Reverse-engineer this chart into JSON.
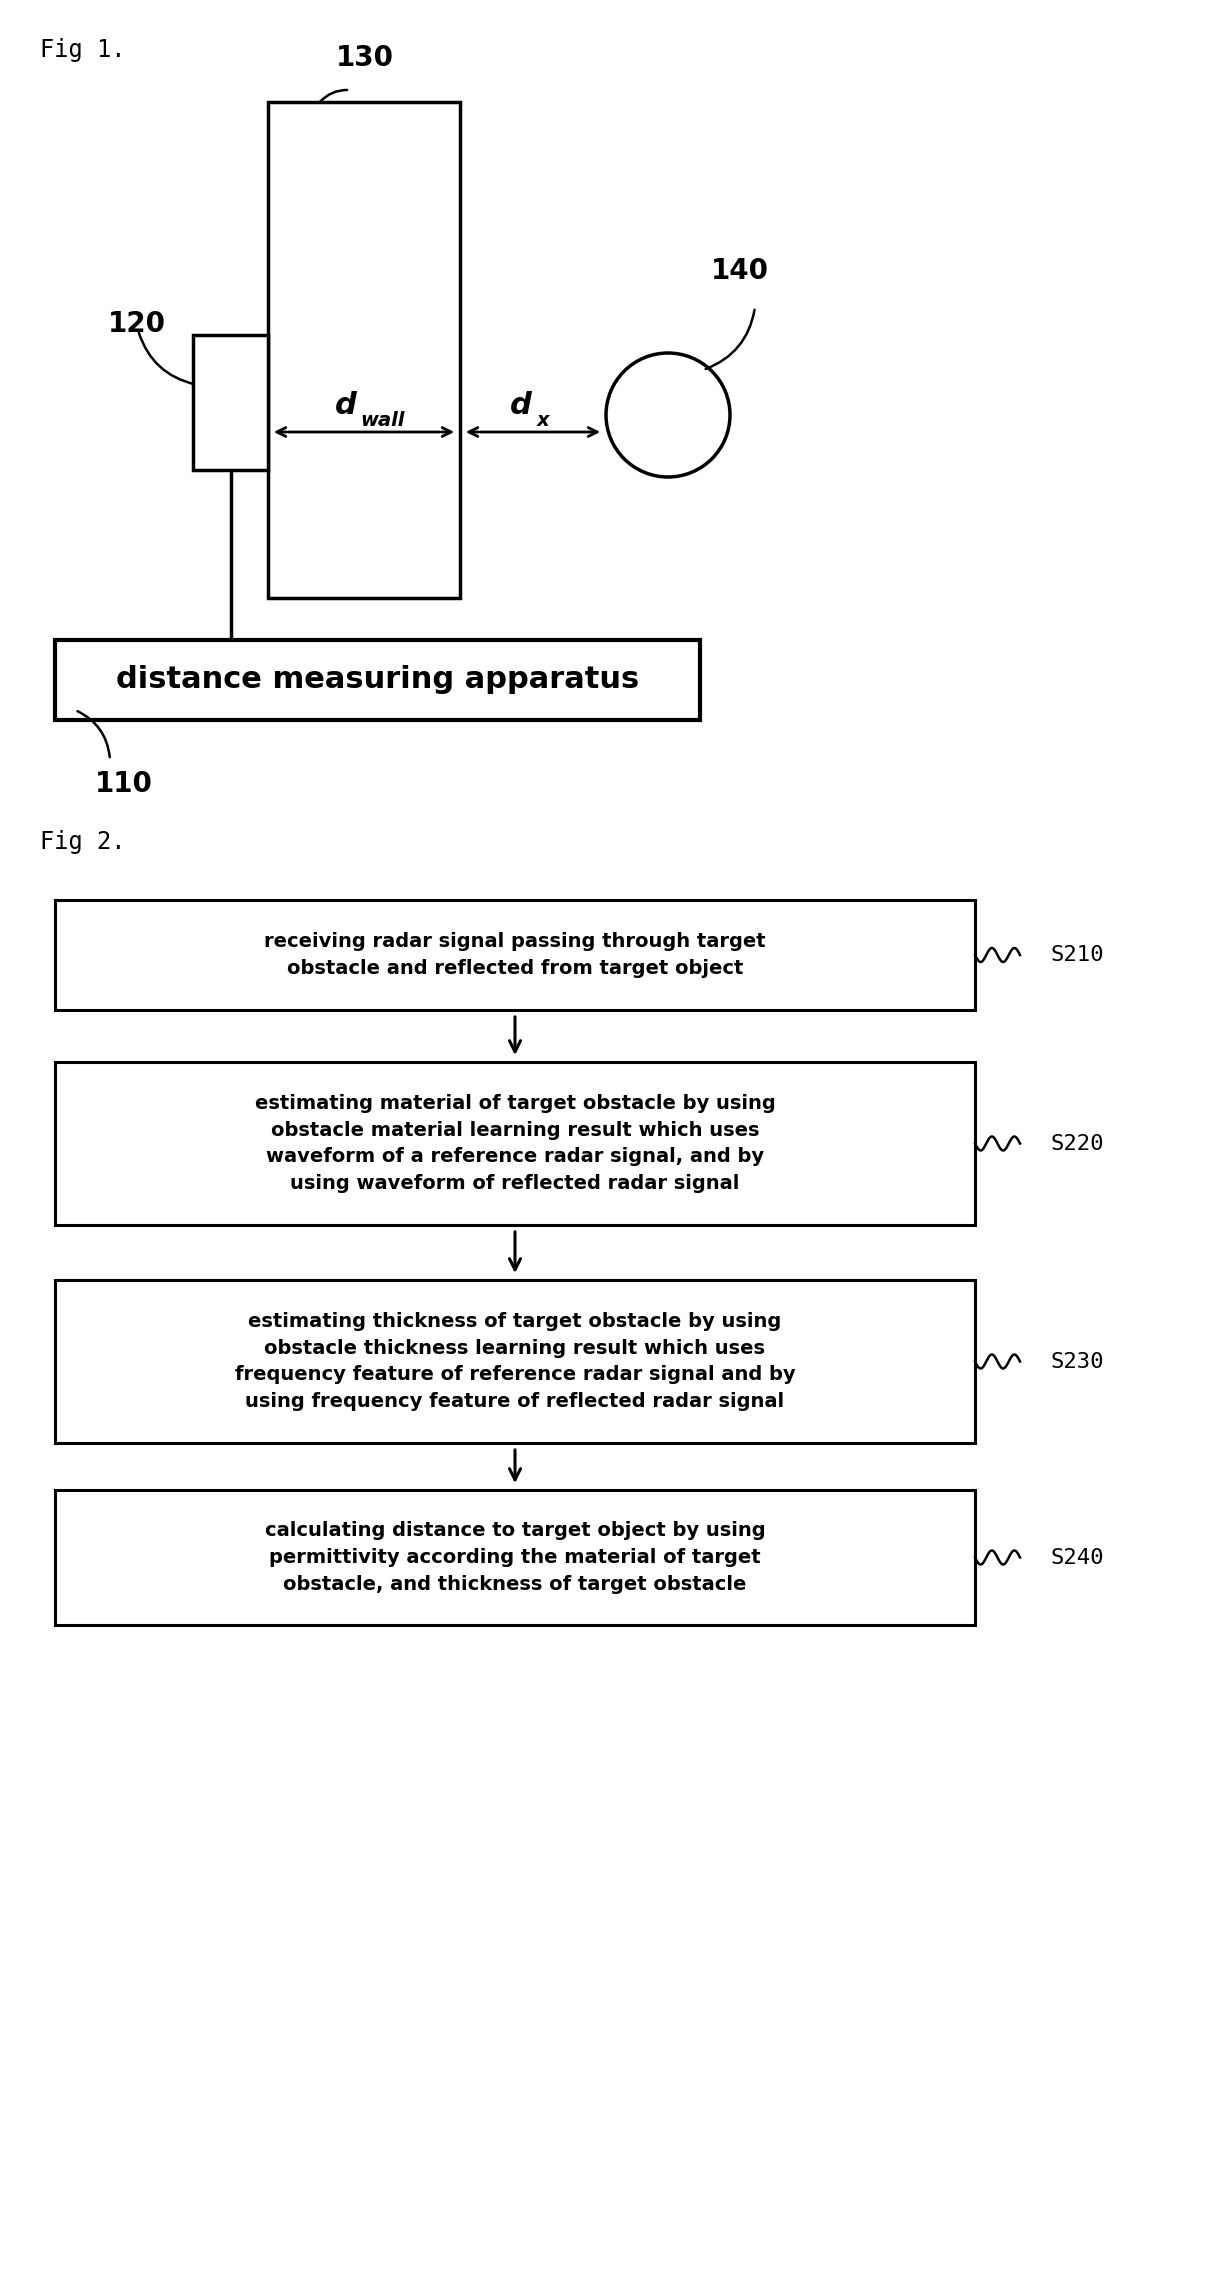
{
  "bg_color": "#ffffff",
  "fig1_label": "Fig 1.",
  "fig2_label": "Fig 2.",
  "label_110": "110",
  "label_120": "120",
  "label_130": "130",
  "label_140": "140",
  "dwall_label": "d",
  "dwall_sub": "wall",
  "dx_label": "d",
  "dx_sub": "x",
  "dma_label": "distance measuring apparatus",
  "flow_boxes": [
    {
      "id": "S210",
      "label": "S210",
      "text": "receiving radar signal passing through target\nobstacle and reflected from target object"
    },
    {
      "id": "S220",
      "label": "S220",
      "text": "estimating material of target obstacle by using\nobstacle material learning result which uses\nwaveform of a reference radar signal, and by\nusing waveform of reflected radar signal"
    },
    {
      "id": "S230",
      "label": "S230",
      "text": "estimating thickness of target obstacle by using\nobstacle thickness learning result which uses\nfrequency feature of reference radar signal and by\nusing frequency feature of reflected radar signal"
    },
    {
      "id": "S240",
      "label": "S240",
      "text": "calculating distance to target object by using\npermittivity according the material of target\nobstacle, and thickness of target obstacle"
    }
  ]
}
